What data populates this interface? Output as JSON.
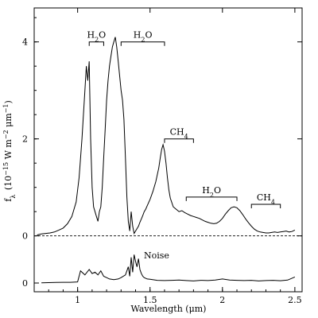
{
  "chart_data": [
    {
      "type": "line",
      "panel": "spectrum",
      "xlabel": "Wavelength (μm)",
      "ylabel": "f_λ (10^-15 W m^-2 μm^-1)",
      "ylabel_parts": {
        "f": "f",
        "lambda": "λ",
        "open": "(10",
        "exp1": "−15",
        "w": " W m",
        "exp2": "−2",
        "um": " μm",
        "exp3": "−1",
        "close": ")"
      },
      "xlim": [
        0.7,
        2.55
      ],
      "ylim": [
        -0.3,
        4.7
      ],
      "xticks": [
        1,
        1.5,
        2,
        2.5
      ],
      "xtick_labels": [
        "1",
        "1.5",
        "2",
        "2.5"
      ],
      "yticks": [
        0,
        2,
        4
      ],
      "ytick_labels": [
        "0",
        "2",
        "4"
      ],
      "zero_line": "dashed",
      "series": [
        {
          "x": [
            0.72,
            0.75,
            0.78,
            0.81,
            0.84,
            0.87,
            0.9,
            0.93,
            0.96,
            0.99,
            1.01,
            1.03,
            1.05,
            1.06,
            1.07,
            1.08,
            1.09,
            1.1,
            1.11,
            1.12,
            1.13,
            1.14,
            1.15,
            1.16,
            1.17,
            1.18,
            1.19,
            1.2,
            1.21,
            1.22,
            1.23,
            1.24,
            1.25,
            1.26,
            1.27,
            1.28,
            1.29,
            1.3,
            1.31,
            1.32,
            1.33,
            1.34,
            1.35,
            1.36,
            1.37,
            1.38,
            1.39,
            1.4,
            1.41,
            1.42,
            1.43,
            1.44,
            1.45,
            1.46,
            1.47,
            1.48,
            1.5,
            1.52,
            1.54,
            1.56,
            1.57,
            1.58,
            1.59,
            1.6,
            1.61,
            1.62,
            1.63,
            1.64,
            1.66,
            1.68,
            1.7,
            1.72,
            1.74,
            1.76,
            1.78,
            1.8,
            1.82,
            1.84,
            1.86,
            1.88,
            1.9,
            1.92,
            1.94,
            1.96,
            1.98,
            2.0,
            2.02,
            2.04,
            2.06,
            2.08,
            2.1,
            2.12,
            2.14,
            2.16,
            2.18,
            2.2,
            2.22,
            2.24,
            2.26,
            2.28,
            2.3,
            2.32,
            2.34,
            2.36,
            2.38,
            2.4,
            2.42,
            2.44,
            2.46,
            2.48,
            2.5
          ],
          "y": [
            0.02,
            0.04,
            0.05,
            0.06,
            0.08,
            0.12,
            0.16,
            0.25,
            0.4,
            0.7,
            1.2,
            2.0,
            3.0,
            3.5,
            3.2,
            3.6,
            2.0,
            1.0,
            0.6,
            0.5,
            0.4,
            0.3,
            0.5,
            0.6,
            1.0,
            1.6,
            2.2,
            2.8,
            3.2,
            3.5,
            3.7,
            3.9,
            4.0,
            4.1,
            3.9,
            3.6,
            3.3,
            3.0,
            2.8,
            2.4,
            1.6,
            0.8,
            0.3,
            0.1,
            0.5,
            0.2,
            0.05,
            0.1,
            0.15,
            0.2,
            0.28,
            0.35,
            0.42,
            0.5,
            0.55,
            0.62,
            0.75,
            0.92,
            1.12,
            1.4,
            1.6,
            1.78,
            1.88,
            1.75,
            1.5,
            1.2,
            0.95,
            0.78,
            0.6,
            0.55,
            0.5,
            0.52,
            0.48,
            0.45,
            0.42,
            0.4,
            0.38,
            0.36,
            0.33,
            0.3,
            0.28,
            0.26,
            0.25,
            0.26,
            0.3,
            0.36,
            0.45,
            0.52,
            0.58,
            0.6,
            0.58,
            0.52,
            0.44,
            0.35,
            0.27,
            0.2,
            0.14,
            0.1,
            0.08,
            0.07,
            0.06,
            0.06,
            0.07,
            0.08,
            0.07,
            0.08,
            0.09,
            0.1,
            0.08,
            0.09,
            0.12
          ]
        }
      ],
      "band_labels": [
        {
          "text_main": "H",
          "text_sub": "2",
          "text_end": "O",
          "x_start": 1.08,
          "x_end": 1.18,
          "y": 4.0
        },
        {
          "text_main": "H",
          "text_sub": "2",
          "text_end": "O",
          "x_start": 1.3,
          "x_end": 1.6,
          "y": 4.0
        },
        {
          "text_main": "CH",
          "text_sub": "4",
          "text_end": "",
          "x_start": 1.6,
          "x_end": 1.8,
          "y": 2.0
        },
        {
          "text_main": "H",
          "text_sub": "2",
          "text_end": "O",
          "x_start": 1.75,
          "x_end": 2.1,
          "y": 0.8
        },
        {
          "text_main": "CH",
          "text_sub": "4",
          "text_end": "",
          "x_start": 2.2,
          "x_end": 2.4,
          "y": 0.65
        }
      ]
    },
    {
      "type": "line",
      "panel": "noise",
      "xlim": [
        0.7,
        2.55
      ],
      "yticks": [
        0
      ],
      "ytick_labels": [
        "0"
      ],
      "annotation": "Noise",
      "series": [
        {
          "x": [
            0.75,
            0.8,
            0.85,
            0.9,
            0.95,
            1.0,
            1.02,
            1.05,
            1.08,
            1.1,
            1.12,
            1.14,
            1.16,
            1.18,
            1.2,
            1.22,
            1.25,
            1.28,
            1.3,
            1.33,
            1.35,
            1.36,
            1.37,
            1.38,
            1.39,
            1.4,
            1.41,
            1.42,
            1.43,
            1.44,
            1.45,
            1.46,
            1.48,
            1.5,
            1.55,
            1.6,
            1.65,
            1.7,
            1.75,
            1.8,
            1.85,
            1.9,
            1.95,
            2.0,
            2.05,
            2.1,
            2.15,
            2.2,
            2.25,
            2.3,
            2.35,
            2.4,
            2.45,
            2.5
          ],
          "y": [
            0.02,
            0.03,
            0.04,
            0.05,
            0.05,
            0.08,
            0.9,
            0.6,
            1.0,
            0.7,
            0.8,
            0.6,
            0.9,
            0.5,
            0.4,
            0.3,
            0.25,
            0.3,
            0.4,
            0.6,
            1.2,
            0.5,
            1.9,
            0.8,
            2.1,
            1.6,
            1.2,
            1.8,
            1.0,
            0.7,
            0.5,
            0.4,
            0.3,
            0.28,
            0.2,
            0.18,
            0.2,
            0.22,
            0.18,
            0.15,
            0.2,
            0.18,
            0.22,
            0.3,
            0.22,
            0.2,
            0.18,
            0.2,
            0.15,
            0.18,
            0.2,
            0.17,
            0.22,
            0.45
          ]
        }
      ]
    }
  ]
}
